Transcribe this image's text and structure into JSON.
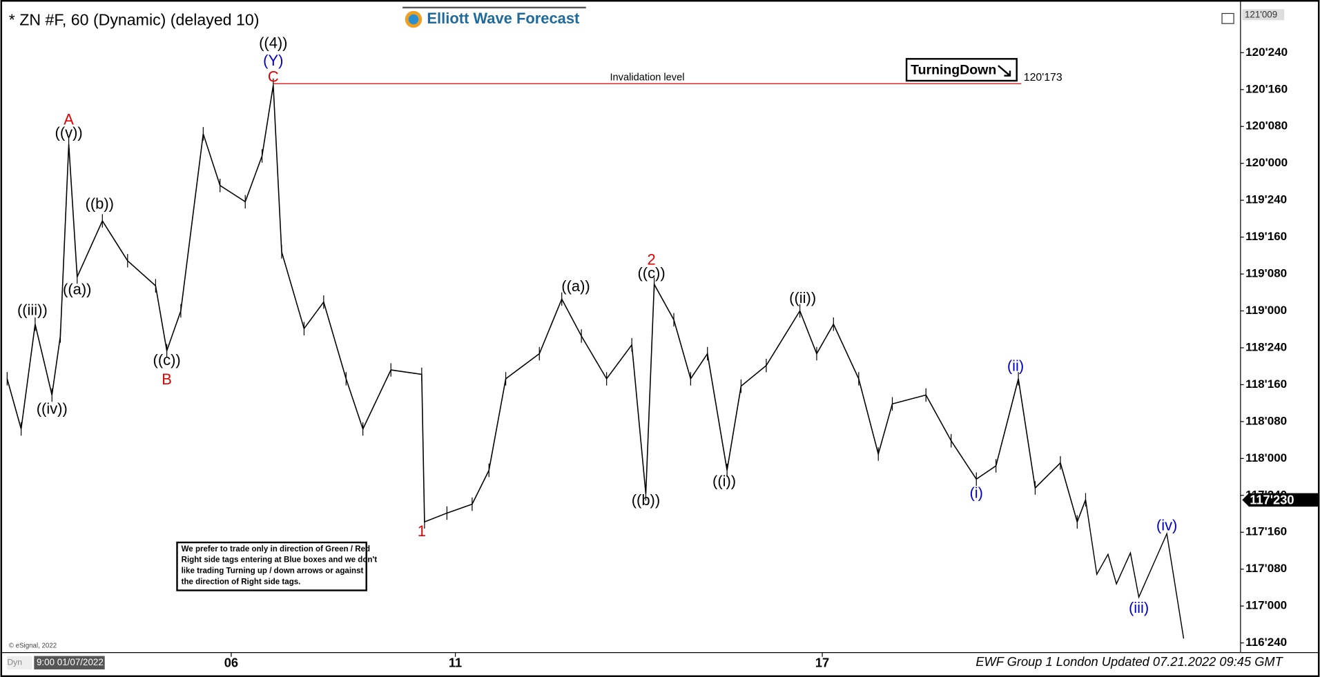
{
  "chart_data": {
    "type": "line",
    "title": "* ZN #F, 60 (Dynamic) (delayed 10)",
    "logo": "Elliott Wave Forecast",
    "xlim": [
      0,
      440
    ],
    "ylim": [
      116.69,
      121.05
    ],
    "xticks": [
      {
        "value": 80,
        "label": "06"
      },
      {
        "value": 160,
        "label": "11"
      },
      {
        "value": 291,
        "label": "17"
      }
    ],
    "yticks": [
      {
        "value": 120.75,
        "label": "120'240"
      },
      {
        "value": 120.5,
        "label": "120'160"
      },
      {
        "value": 120.25,
        "label": "120'080"
      },
      {
        "value": 120.0,
        "label": "120'000"
      },
      {
        "value": 119.75,
        "label": "119'240"
      },
      {
        "value": 119.5,
        "label": "119'160"
      },
      {
        "value": 119.25,
        "label": "119'080"
      },
      {
        "value": 119.0,
        "label": "119'000"
      },
      {
        "value": 118.75,
        "label": "118'240"
      },
      {
        "value": 118.5,
        "label": "118'160"
      },
      {
        "value": 118.25,
        "label": "118'080"
      },
      {
        "value": 118.0,
        "label": "118'000"
      },
      {
        "value": 117.75,
        "label": "117'240"
      },
      {
        "value": 117.5,
        "label": "117'160"
      },
      {
        "value": 117.25,
        "label": "117'080"
      },
      {
        "value": 117.0,
        "label": "117'000"
      },
      {
        "value": 116.75,
        "label": "116'240"
      }
    ],
    "series": [
      {
        "color": "#000000",
        "x": [
          0,
          5,
          10,
          16,
          19,
          22,
          25,
          34,
          43,
          53,
          57,
          62,
          70,
          76,
          85,
          91,
          95,
          98,
          106,
          113,
          121,
          127,
          137,
          148,
          149,
          157,
          166,
          172,
          178,
          190,
          198,
          205,
          214,
          223,
          228,
          231,
          238,
          244,
          250,
          257,
          262,
          271,
          283,
          289,
          295,
          304,
          311,
          316,
          328,
          337,
          346,
          353,
          361,
          367,
          376,
          382,
          385
        ],
        "values": [
          118.54,
          118.2,
          118.91,
          118.43,
          118.83,
          120.13,
          119.23,
          119.61,
          119.34,
          119.17,
          118.73,
          119.0,
          120.2,
          119.85,
          119.74,
          120.05,
          120.53,
          119.4,
          118.88,
          119.06,
          118.54,
          118.2,
          118.6,
          118.57,
          117.57,
          117.63,
          117.69,
          117.92,
          118.54,
          118.71,
          119.08,
          118.83,
          118.54,
          118.77,
          117.76,
          119.18,
          118.94,
          118.54,
          118.71,
          117.92,
          118.49,
          118.63,
          119.0,
          118.71,
          118.91,
          118.54,
          118.03,
          118.37,
          118.43,
          118.12,
          117.86,
          117.95,
          118.54,
          117.8,
          117.97,
          117.57,
          117.72
        ]
      },
      {
        "color": "#000000",
        "x": [
          385,
          389,
          393,
          396,
          401,
          404,
          414,
          420
        ],
        "values": [
          117.72,
          117.215,
          117.35,
          117.15,
          117.36,
          117.06,
          117.49,
          116.78
        ]
      }
    ],
    "invalidation": {
      "text": "Invalidation level",
      "value": 120.54,
      "label": "120'173",
      "x": [
        95,
        362
      ],
      "color": "#e00000"
    },
    "current_price": {
      "value": 117.719,
      "label": "117'230"
    },
    "top_label": "121'009",
    "tag": "TurningDown",
    "annotations": [
      {
        "text": "((4))",
        "color": "#000000",
        "x": 95,
        "y": 120.81
      },
      {
        "text": "(Y)",
        "color": "#0000cc",
        "x": 95,
        "y": 120.69
      },
      {
        "text": "C",
        "color": "#e00000",
        "x": 95,
        "y": 120.58
      },
      {
        "text": "A",
        "color": "#e00000",
        "x": 22,
        "y": 120.29
      },
      {
        "text": "((v))",
        "color": "#000000",
        "x": 22,
        "y": 120.2
      },
      {
        "text": "((b))",
        "color": "#000000",
        "x": 33,
        "y": 119.72
      },
      {
        "text": "((a))",
        "color": "#000000",
        "x": 25,
        "y": 119.14
      },
      {
        "text": "((iii))",
        "color": "#000000",
        "x": 9,
        "y": 119.0
      },
      {
        "text": "((iv))",
        "color": "#000000",
        "x": 16,
        "y": 118.33
      },
      {
        "text": "((c))",
        "color": "#000000",
        "x": 57,
        "y": 118.66
      },
      {
        "text": "B",
        "color": "#e00000",
        "x": 57,
        "y": 118.53
      },
      {
        "text": "1",
        "color": "#e00000",
        "x": 148,
        "y": 117.5
      },
      {
        "text": "((a))",
        "color": "#000000",
        "x": 203,
        "y": 119.16
      },
      {
        "text": "2",
        "color": "#e00000",
        "x": 230,
        "y": 119.34
      },
      {
        "text": "((c))",
        "color": "#000000",
        "x": 230,
        "y": 119.25
      },
      {
        "text": "((b))",
        "color": "#000000",
        "x": 228,
        "y": 117.71
      },
      {
        "text": "((i))",
        "color": "#000000",
        "x": 256,
        "y": 117.84
      },
      {
        "text": "((ii))",
        "color": "#000000",
        "x": 284,
        "y": 119.08
      },
      {
        "text": "(ii)",
        "color": "#0000cc",
        "x": 360,
        "y": 118.62
      },
      {
        "text": "(i)",
        "color": "#0000cc",
        "x": 346,
        "y": 117.76
      },
      {
        "text": "(iv)",
        "color": "#0000cc",
        "x": 414,
        "y": 117.54
      },
      {
        "text": "(iii)",
        "color": "#0000cc",
        "x": 404,
        "y": 116.98
      }
    ],
    "note": [
      "We prefer to trade only in direction of Green / Red",
      "Right side tags entering at Blue boxes and we don't",
      "like trading Turning up / down arrows or against",
      "the direction of Right side tags."
    ],
    "copyright": "© eSignal, 2022",
    "start_label": "9:00 01/07/2022",
    "corner_label": "Dyn",
    "footer": "EWF Group 1 London Updated 07.21.2022 09:45 GMT"
  }
}
